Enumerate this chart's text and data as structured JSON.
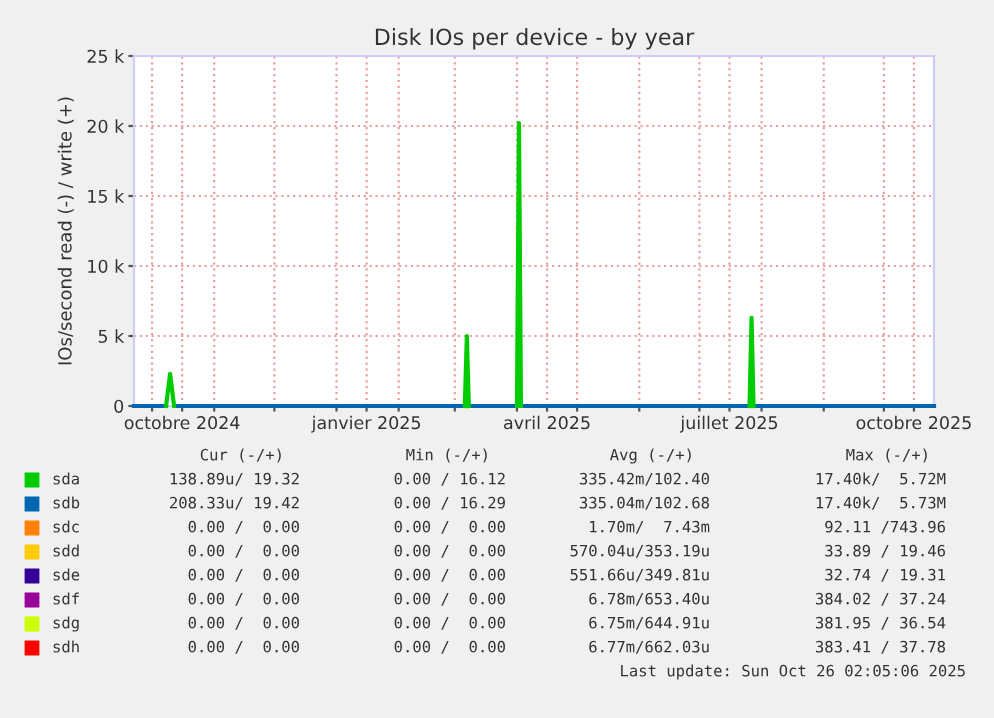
{
  "chart_data": {
    "type": "line",
    "title": "Disk IOs per device - by year",
    "ylabel": "IOs/second read (-) / write (+)",
    "x": [
      "2024-09-22",
      "2024-10-08",
      "2024-10-10",
      "2024-10-12",
      "2024-12-15",
      "2025-03-06",
      "2025-03-07",
      "2025-03-08",
      "2025-03-20",
      "2025-04-01",
      "2025-04-02",
      "2025-04-03",
      "2025-05-15",
      "2025-07-26",
      "2025-07-27",
      "2025-07-28",
      "2025-10-26"
    ],
    "xlim": [
      "2024-09-22",
      "2025-10-26"
    ],
    "xticks": [
      {
        "value": "2024-10-01",
        "label": null
      },
      {
        "value": "2024-10-16",
        "label": "octobre 2024"
      },
      {
        "value": "2024-11-01",
        "label": null
      },
      {
        "value": "2024-12-01",
        "label": null
      },
      {
        "value": "2025-01-01",
        "label": null
      },
      {
        "value": "2025-01-16",
        "label": "janvier 2025"
      },
      {
        "value": "2025-02-01",
        "label": null
      },
      {
        "value": "2025-03-01",
        "label": null
      },
      {
        "value": "2025-04-01",
        "label": null
      },
      {
        "value": "2025-04-16",
        "label": "avril 2025"
      },
      {
        "value": "2025-05-01",
        "label": null
      },
      {
        "value": "2025-06-01",
        "label": null
      },
      {
        "value": "2025-07-01",
        "label": null
      },
      {
        "value": "2025-07-16",
        "label": "juillet 2025"
      },
      {
        "value": "2025-08-01",
        "label": null
      },
      {
        "value": "2025-09-01",
        "label": null
      },
      {
        "value": "2025-10-01",
        "label": null
      },
      {
        "value": "2025-10-16",
        "label": "octobre 2025"
      }
    ],
    "ylim": [
      0,
      25000
    ],
    "yticks": [
      {
        "value": 0,
        "label": "0"
      },
      {
        "value": 5000,
        "label": "5 k"
      },
      {
        "value": 10000,
        "label": "10 k"
      },
      {
        "value": 15000,
        "label": "15 k"
      },
      {
        "value": 20000,
        "label": "20 k"
      },
      {
        "value": 25000,
        "label": "25 k"
      }
    ],
    "grid": true,
    "legend": "bottom",
    "marker": "none",
    "line_style": "solid",
    "series": [
      {
        "name": "sda",
        "color": "#00cc00",
        "values": [
          null,
          0,
          2300,
          0,
          null,
          0,
          5000,
          0,
          null,
          0,
          20200,
          0,
          null,
          0,
          6300,
          0,
          null
        ]
      },
      {
        "name": "sdb",
        "color": "#0066b3",
        "values": [
          0,
          0,
          null,
          0,
          0,
          0,
          null,
          0,
          0,
          0,
          null,
          0,
          0,
          0,
          null,
          0,
          0
        ]
      },
      {
        "name": "sdc",
        "color": "#ff8000",
        "values": [
          null,
          null,
          null,
          null,
          null,
          null,
          null,
          null,
          null,
          null,
          null,
          null,
          null,
          null,
          null,
          null,
          null
        ]
      },
      {
        "name": "sdd",
        "color": "#ffcc00",
        "values": [
          null,
          null,
          null,
          null,
          null,
          null,
          null,
          null,
          null,
          null,
          null,
          null,
          null,
          null,
          null,
          null,
          null
        ]
      },
      {
        "name": "sde",
        "color": "#330099",
        "values": [
          null,
          null,
          null,
          null,
          null,
          null,
          null,
          null,
          null,
          null,
          null,
          null,
          null,
          null,
          null,
          null,
          null
        ]
      },
      {
        "name": "sdf",
        "color": "#990099",
        "values": [
          null,
          null,
          null,
          null,
          null,
          null,
          null,
          null,
          null,
          null,
          null,
          null,
          null,
          null,
          null,
          null,
          null
        ]
      },
      {
        "name": "sdg",
        "color": "#ccff00",
        "values": [
          null,
          null,
          null,
          null,
          null,
          null,
          null,
          null,
          null,
          null,
          null,
          null,
          null,
          null,
          null,
          null,
          null
        ]
      },
      {
        "name": "sdh",
        "color": "#ff0000",
        "values": [
          null,
          null,
          null,
          null,
          null,
          null,
          null,
          null,
          null,
          null,
          null,
          null,
          null,
          null,
          null,
          null,
          null
        ]
      }
    ],
    "annotations": [
      "Cur (-/+)",
      "Min (-/+)",
      "Avg (-/+)",
      "Max (-/+)",
      "138.89u/ 19.32",
      "0.00 / 16.12",
      "335.42m/102.40",
      "17.40k/  5.72M",
      "208.33u/ 19.42",
      "0.00 / 16.29",
      "335.04m/102.68",
      "17.40k/  5.73M",
      "0.00 /  0.00",
      "0.00 /  0.00",
      "1.70m/  7.43m",
      "92.11 /743.96",
      "0.00 /  0.00",
      "0.00 /  0.00",
      "570.04u/353.19u",
      "33.89 / 19.46",
      "0.00 /  0.00",
      "0.00 /  0.00",
      "551.66u/349.81u",
      "32.74 / 19.31",
      "0.00 /  0.00",
      "0.00 /  0.00",
      "6.78m/653.40u",
      "384.02 / 37.24",
      "0.00 /  0.00",
      "0.00 /  0.00",
      "6.75m/644.91u",
      "381.95 / 36.54",
      "0.00 /  0.00",
      "0.00 /  0.00",
      "6.77m/662.03u",
      "383.41 / 37.78",
      "Last update: Sun Oct 26 02:05:06 2025"
    ]
  }
}
